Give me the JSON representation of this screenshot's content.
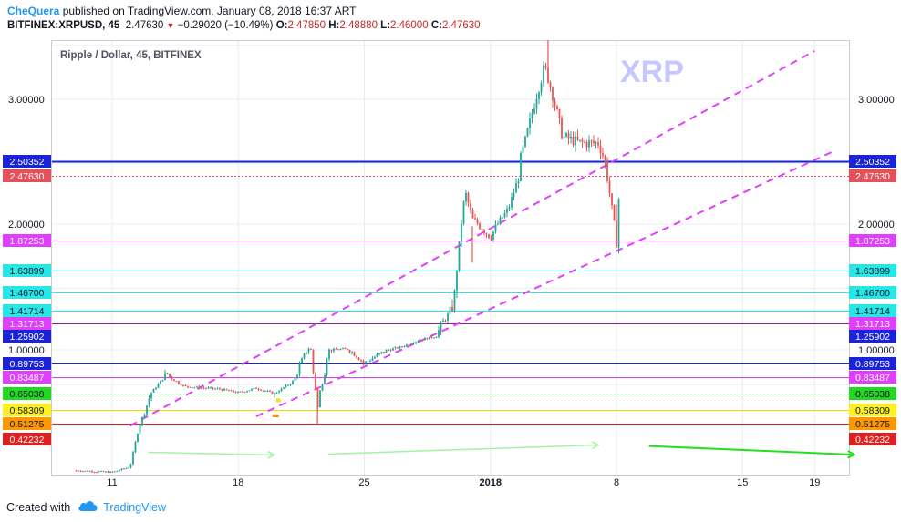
{
  "header": {
    "author": "CheQuera",
    "published_text": "published on TradingView.com, January 08, 2018 16:37 ART",
    "symbol": "BITFINEX:XRPUSD, 45",
    "last": "2.47630",
    "change": "−0.29020 (−10.49%)",
    "o_label": "O:",
    "o_value": "2.47850",
    "h_label": "H:",
    "h_value": "2.48880",
    "l_label": "L:",
    "l_value": "2.46000",
    "c_label": "C:",
    "c_value": "2.47630"
  },
  "footer": {
    "created_with": "Created with",
    "brand": "TradingView"
  },
  "chart_data": {
    "type": "candlestick",
    "title": "Ripple / Dollar, 45, BITFINEX",
    "watermark": "XRP",
    "x_ticks": [
      "11",
      "18",
      "25",
      "2018",
      "8",
      "15",
      "19"
    ],
    "y_ticks": [
      "1.00000",
      "2.00000",
      "3.00000"
    ],
    "ylim": [
      0.22,
      3.55
    ],
    "grid": true,
    "price_path": [
      [
        "Dec 9",
        0.25
      ],
      [
        "Dec 11",
        0.24
      ],
      [
        "Dec 12",
        0.27
      ],
      [
        "Dec 12.5",
        0.5
      ],
      [
        "Dec 13",
        0.62
      ],
      [
        "Dec 14",
        0.86
      ],
      [
        "Dec 15",
        0.73
      ],
      [
        "Dec 17",
        0.7
      ],
      [
        "Dec 18",
        0.66
      ],
      [
        "Dec 19",
        0.71
      ],
      [
        "Dec 20",
        0.65
      ],
      [
        "Dec 21",
        0.78
      ],
      [
        "Dec 22",
        1.05
      ],
      [
        "Dec 22.4",
        0.58
      ],
      [
        "Dec 23",
        1.0
      ],
      [
        "Dec 24",
        1.02
      ],
      [
        "Dec 25",
        0.9
      ],
      [
        "Dec 26",
        0.98
      ],
      [
        "Dec 27",
        1.05
      ],
      [
        "Dec 28",
        1.18
      ],
      [
        "Dec 29",
        1.26
      ],
      [
        "Dec 30",
        1.45
      ],
      [
        "Dec 30.6",
        2.32
      ],
      [
        "Dec 31",
        2.05
      ],
      [
        "Jan 1",
        1.9
      ],
      [
        "Jan 2",
        2.15
      ],
      [
        "Jan 3",
        2.7
      ],
      [
        "Jan 4",
        3.3
      ],
      [
        "Jan 4.2",
        3.2
      ],
      [
        "Jan 5",
        2.7
      ],
      [
        "Jan 6",
        2.65
      ],
      [
        "Jan 7",
        2.65
      ],
      [
        "Jan 7.5",
        2.45
      ],
      [
        "Jan 8",
        1.85
      ],
      [
        "Jan 8.2",
        2.48
      ]
    ],
    "trendlines": [
      {
        "from": [
          "Dec 12",
          0.5
        ],
        "to": [
          "Jan 19",
          3.45
        ],
        "style": "dashed",
        "color": "#e040fb"
      },
      {
        "from": [
          "Dec 19",
          0.55
        ],
        "to": [
          "Jan 20",
          2.58
        ],
        "style": "dashed",
        "color": "#e040fb"
      }
    ],
    "levels": [
      {
        "value": "2.50352",
        "bg": "#1a23d8",
        "fg": "#ffffff",
        "line": "#1a23d8",
        "width": 2
      },
      {
        "value": "2.47630",
        "bg": "#e5505a",
        "fg": "#ffffff",
        "line": "#e5505a",
        "width": 1,
        "dotted": true
      },
      {
        "value": "1.87253",
        "bg": "#e040fb",
        "fg": "#ffffff",
        "line": "#e040fb",
        "width": 1
      },
      {
        "value": "1.63899",
        "bg": "#26e6e6",
        "fg": "#131722",
        "line": "#26e6e6",
        "width": 1
      },
      {
        "value": "1.46700",
        "bg": "#26e6e6",
        "fg": "#131722",
        "line": "#26e6e6",
        "width": 1
      },
      {
        "value": "1.41714",
        "bg": "#26e6e6",
        "fg": "#131722",
        "line": "#26e6e6",
        "width": 1
      },
      {
        "value": "1.31713",
        "bg": "#e040fb",
        "fg": "#ffffff",
        "line": "#8b1f8b",
        "width": 1
      },
      {
        "value": "1.25902",
        "bg": "#1a23d8",
        "fg": "#ffffff",
        "line": null,
        "width": 1
      },
      {
        "value": "0.89753",
        "bg": "#1a23d8",
        "fg": "#ffffff",
        "line": "#1a23d8",
        "width": 1
      },
      {
        "value": "0.83487",
        "bg": "#e040fb",
        "fg": "#ffffff",
        "line": "#e040fb",
        "width": 1
      },
      {
        "value": "0.65038",
        "bg": "#22d822",
        "fg": "#131722",
        "line": "#22d822",
        "width": 1,
        "dotted": true
      },
      {
        "value": "0.58309",
        "bg": "#fff020",
        "fg": "#131722",
        "line": "#f5d800",
        "width": 1
      },
      {
        "value": "0.51275",
        "bg": "#ff9800",
        "fg": "#131722",
        "line": "#d62828",
        "width": 1
      },
      {
        "value": "0.42232",
        "bg": "#e02020",
        "fg": "#ffffff",
        "line": null,
        "width": 1
      }
    ],
    "colors": {
      "up": "#26a69a",
      "down": "#ef5350",
      "grid": "#e9ecef",
      "arrow_light": "#a5f2a5",
      "arrow_strong": "#22e022"
    }
  }
}
